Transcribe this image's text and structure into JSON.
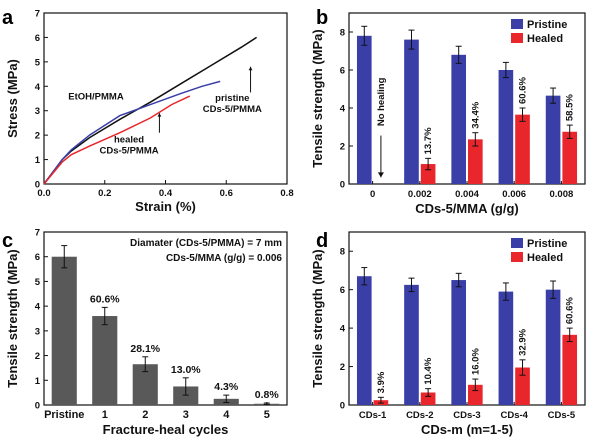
{
  "colors": {
    "blue": "#3a3fa8",
    "red": "#e8262c",
    "gray": "#595959",
    "black": "#111111"
  },
  "panels": [
    "a",
    "b",
    "c",
    "d"
  ],
  "chart_data": [
    {
      "id": "a",
      "type": "line",
      "xlabel": "Strain (%)",
      "ylabel": "Stress (MPa)",
      "xlim": [
        0,
        0.8
      ],
      "ylim": [
        0,
        7
      ],
      "xticks": [
        "0.0",
        "0.2",
        "0.4",
        "0.6",
        "0.8"
      ],
      "yticks": [
        "0",
        "1",
        "2",
        "3",
        "4",
        "5",
        "6",
        "7"
      ],
      "series": [
        {
          "color": "#111111",
          "points": [
            [
              0,
              0
            ],
            [
              0.03,
              0.5
            ],
            [
              0.06,
              1.0
            ],
            [
              0.09,
              1.35
            ],
            [
              0.15,
              1.9
            ],
            [
              0.25,
              2.65
            ],
            [
              0.35,
              3.35
            ],
            [
              0.45,
              4.1
            ],
            [
              0.55,
              4.85
            ],
            [
              0.65,
              5.6
            ],
            [
              0.7,
              6.0
            ]
          ]
        },
        {
          "color": "#3a3fa8",
          "points": [
            [
              0,
              0
            ],
            [
              0.03,
              0.5
            ],
            [
              0.06,
              1.0
            ],
            [
              0.09,
              1.4
            ],
            [
              0.15,
              2.0
            ],
            [
              0.25,
              2.8
            ],
            [
              0.35,
              3.25
            ],
            [
              0.45,
              3.7
            ],
            [
              0.52,
              4.0
            ],
            [
              0.58,
              4.2
            ]
          ]
        },
        {
          "color": "#e8262c",
          "points": [
            [
              0,
              0
            ],
            [
              0.03,
              0.45
            ],
            [
              0.06,
              0.9
            ],
            [
              0.09,
              1.2
            ],
            [
              0.15,
              1.55
            ],
            [
              0.25,
              2.1
            ],
            [
              0.35,
              2.7
            ],
            [
              0.42,
              3.25
            ],
            [
              0.48,
              3.6
            ]
          ]
        }
      ],
      "annotations": [
        {
          "lines": [
            "EtOH/PMMA"
          ],
          "x": 0.08,
          "y": 3.45
        },
        {
          "lines": [
            "pristine",
            "CDs-5/PMMA"
          ],
          "x": 0.62,
          "y": 3.4
        },
        {
          "lines": [
            "healed",
            "CDs-5/PMMA"
          ],
          "x": 0.28,
          "y": 1.7
        }
      ]
    },
    {
      "id": "b",
      "type": "bar",
      "xlabel": "CDs-5/MMA (g/g)",
      "ylabel": "Tensile strength (MPa)",
      "ylim": [
        0,
        9
      ],
      "yticks": [
        "0",
        "2",
        "4",
        "6",
        "8"
      ],
      "categories": [
        "0",
        "0.002",
        "0.004",
        "0.006",
        "0.008"
      ],
      "series": [
        {
          "name": "Pristine",
          "color": "#3a3fa8",
          "values": [
            7.8,
            7.6,
            6.8,
            6.0,
            4.65
          ],
          "errors": [
            0.5,
            0.5,
            0.45,
            0.4,
            0.4
          ]
        },
        {
          "name": "Healed",
          "color": "#e8262c",
          "values": [
            null,
            1.05,
            2.35,
            3.65,
            2.75
          ],
          "errors": [
            0,
            0.3,
            0.35,
            0.35,
            0.35
          ]
        }
      ],
      "bar_labels": [
        "",
        "13.7%",
        "34.4%",
        "60.6%",
        "58.5%"
      ],
      "no_healing_label": "No healing",
      "legend": "top-right"
    },
    {
      "id": "c",
      "type": "bar",
      "xlabel": "Fracture-heal cycles",
      "ylabel": "Tensile strength (MPa)",
      "ylim": [
        0,
        7
      ],
      "yticks": [
        "0",
        "1",
        "2",
        "3",
        "4",
        "5",
        "6",
        "7"
      ],
      "categories": [
        "Pristine",
        "1",
        "2",
        "3",
        "4",
        "5"
      ],
      "values": [
        6.0,
        3.6,
        1.65,
        0.75,
        0.25,
        0.05
      ],
      "errors": [
        0.45,
        0.35,
        0.3,
        0.35,
        0.15,
        0.03
      ],
      "bar_labels": [
        "",
        "60.6%",
        "28.1%",
        "13.0%",
        "4.3%",
        "0.8%"
      ],
      "notes": [
        "Diamater (CDs-5/PMMA) = 7 mm",
        "CDs-5/MMA (g/g) = 0.006"
      ]
    },
    {
      "id": "d",
      "type": "bar",
      "xlabel": "CDs-m (m=1-5)",
      "ylabel": "Tensile strength (MPa)",
      "ylim": [
        0,
        9
      ],
      "yticks": [
        "0",
        "2",
        "4",
        "6",
        "8"
      ],
      "categories": [
        "CDs-1",
        "CDs-2",
        "CDs-3",
        "CDs-4",
        "CDs-5"
      ],
      "series": [
        {
          "name": "Pristine",
          "color": "#3a3fa8",
          "values": [
            6.7,
            6.25,
            6.5,
            5.9,
            6.0
          ],
          "errors": [
            0.45,
            0.35,
            0.35,
            0.45,
            0.45
          ]
        },
        {
          "name": "Healed",
          "color": "#e8262c",
          "values": [
            0.25,
            0.65,
            1.05,
            1.95,
            3.65
          ],
          "errors": [
            0.15,
            0.2,
            0.3,
            0.4,
            0.35
          ]
        }
      ],
      "bar_labels": [
        "3.9%",
        "10.4%",
        "16.0%",
        "32.9%",
        "60.6%"
      ],
      "legend": "top-right"
    }
  ]
}
